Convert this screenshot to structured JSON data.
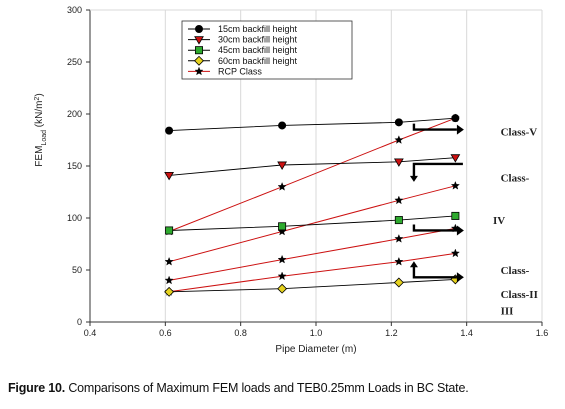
{
  "caption": {
    "label": "Figure 10.",
    "text": "Comparisons of Maximum FEM loads and TEB0.25mm Loads in BC State."
  },
  "chart_data": {
    "type": "line",
    "xlabel": "Pipe Diameter (m)",
    "ylabel_main": "FEM",
    "ylabel_sub": "Load",
    "ylabel_unit": " (kN/m",
    "ylabel_sup": "2",
    "ylabel_close": ")",
    "xlim": [
      0.4,
      1.6
    ],
    "ylim": [
      0,
      300
    ],
    "xticks": [
      0.4,
      0.6,
      0.8,
      1.0,
      1.2,
      1.4,
      1.6
    ],
    "xtick_labels": [
      "0.4",
      "0.6",
      "0.8",
      "1.0",
      "1.2",
      "1.4",
      "1.6"
    ],
    "yticks": [
      0,
      50,
      100,
      150,
      200,
      250,
      300
    ],
    "ytick_labels": [
      "0",
      "50",
      "100",
      "150",
      "200",
      "250",
      "300"
    ],
    "grid": "vertical",
    "legend_position": "top-center",
    "series": [
      {
        "name": "15cm backfill height",
        "marker": "circle",
        "fill": "#000000",
        "color": "#000000",
        "x": [
          0.61,
          0.91,
          1.22,
          1.37
        ],
        "y": [
          184,
          189,
          192,
          196
        ]
      },
      {
        "name": "30cm backfill height",
        "marker": "triangle-down",
        "fill": "#cc1111",
        "color": "#000000",
        "x": [
          0.61,
          0.91,
          1.22,
          1.37
        ],
        "y": [
          141,
          151,
          154,
          158
        ]
      },
      {
        "name": "45cm backfill height",
        "marker": "square",
        "fill": "#2eaa2e",
        "color": "#000000",
        "x": [
          0.61,
          0.91,
          1.22,
          1.37
        ],
        "y": [
          88,
          92,
          98,
          102
        ]
      },
      {
        "name": "60cm backfill height",
        "marker": "diamond",
        "fill": "#e6d21e",
        "color": "#000000",
        "x": [
          0.61,
          0.91,
          1.22,
          1.37
        ],
        "y": [
          29,
          32,
          38,
          41
        ]
      }
    ],
    "rcp_series": {
      "name": "RCP Class",
      "marker": "star",
      "color": "#cc1111",
      "lines": [
        {
          "x": [
            0.61,
            0.91,
            1.22,
            1.37
          ],
          "y": [
            87,
            130,
            175,
            196
          ]
        },
        {
          "x": [
            0.61,
            0.91,
            1.22,
            1.37
          ],
          "y": [
            58,
            87,
            117,
            131
          ]
        },
        {
          "x": [
            0.61,
            0.91,
            1.22,
            1.37
          ],
          "y": [
            40,
            60,
            80,
            90
          ]
        },
        {
          "x": [
            0.61,
            0.91,
            1.22,
            1.37
          ],
          "y": [
            29,
            44,
            58,
            66
          ]
        }
      ]
    },
    "annotations": [
      {
        "text": "Class-V",
        "x": 1.49,
        "y": 183
      },
      {
        "text": "Class-",
        "x": 1.49,
        "y": 139
      },
      {
        "text": "IV",
        "x": 1.47,
        "y": 98
      },
      {
        "text": "Class-",
        "x": 1.49,
        "y": 50
      },
      {
        "text": "III",
        "x": 1.49,
        "y": 11
      },
      {
        "text": "Class-II",
        "x": 1.49,
        "y": 27
      }
    ],
    "arrows": [
      {
        "from": [
          1.26,
          185
        ],
        "to": [
          1.39,
          185
        ],
        "kind": "hook-right"
      },
      {
        "from": [
          1.26,
          152
        ],
        "to": [
          1.39,
          152
        ],
        "kind": "hook-down"
      },
      {
        "from": [
          1.26,
          88
        ],
        "to": [
          1.39,
          88
        ],
        "kind": "hook-right"
      },
      {
        "from": [
          1.26,
          43
        ],
        "to": [
          1.39,
          43
        ],
        "kind": "hook-up"
      }
    ]
  },
  "colors": {
    "axis": "#333333",
    "grid": "#d9d9d9",
    "rcp_line": "#cc1111",
    "fem_line": "#000000"
  }
}
